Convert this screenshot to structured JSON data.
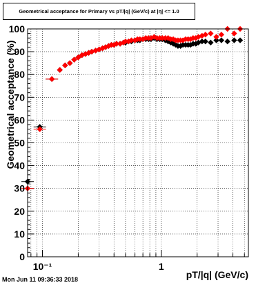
{
  "page_title": "Geometrical acceptance for Primary vs pT/|q| (GeV/c) at |η| <= 1.0",
  "footer_timestamp": "Mon Jun 11 09:36:33 2018",
  "chart_data": {
    "type": "scatter",
    "title": "Geometrical acceptance for Primary vs pT/|q| (GeV/c) at |η| <= 1.0",
    "xlabel": "pT/|q| (GeV/c)",
    "ylabel": "Geometrical acceptance (%)",
    "x_scale": "log",
    "xlim": [
      0.075,
      5.4
    ],
    "ylim": [
      0,
      100
    ],
    "grid": true,
    "legend": "none",
    "x_tick_labels": [
      "10⁻¹",
      "1"
    ],
    "y_tick_labels": [
      "0",
      "10",
      "20",
      "30",
      "40",
      "50",
      "60",
      "70",
      "80",
      "90",
      "100"
    ],
    "series": [
      {
        "marker": "diamond",
        "color": "#000000",
        "points": [
          [
            0.075,
            33
          ],
          [
            0.095,
            57
          ],
          [
            0.12,
            78
          ],
          [
            0.14,
            82
          ],
          [
            0.155,
            84
          ],
          [
            0.17,
            85
          ],
          [
            0.185,
            86.5
          ],
          [
            0.2,
            87.5
          ],
          [
            0.215,
            88.5
          ],
          [
            0.23,
            89
          ],
          [
            0.245,
            89.5
          ],
          [
            0.26,
            90
          ],
          [
            0.28,
            90.5
          ],
          [
            0.3,
            91
          ],
          [
            0.32,
            91.5
          ],
          [
            0.34,
            92
          ],
          [
            0.36,
            92.5
          ],
          [
            0.38,
            93
          ],
          [
            0.4,
            93
          ],
          [
            0.42,
            93.5
          ],
          [
            0.45,
            93.5
          ],
          [
            0.48,
            94
          ],
          [
            0.5,
            94
          ],
          [
            0.53,
            94.5
          ],
          [
            0.56,
            94.5
          ],
          [
            0.6,
            95
          ],
          [
            0.63,
            95
          ],
          [
            0.66,
            95
          ],
          [
            0.7,
            95.5
          ],
          [
            0.74,
            95.5
          ],
          [
            0.78,
            95.5
          ],
          [
            0.82,
            95.5
          ],
          [
            0.87,
            96
          ],
          [
            0.92,
            95.5
          ],
          [
            0.97,
            95.5
          ],
          [
            1.02,
            95.5
          ],
          [
            1.08,
            95
          ],
          [
            1.14,
            94.5
          ],
          [
            1.2,
            94
          ],
          [
            1.26,
            93.5
          ],
          [
            1.32,
            93
          ],
          [
            1.38,
            92.5
          ],
          [
            1.45,
            92.5
          ],
          [
            1.52,
            93
          ],
          [
            1.6,
            93
          ],
          [
            1.68,
            93
          ],
          [
            1.76,
            93
          ],
          [
            1.85,
            93.5
          ],
          [
            1.95,
            93.5
          ],
          [
            2.05,
            94
          ],
          [
            2.2,
            94.5
          ],
          [
            2.35,
            94.5
          ],
          [
            2.6,
            94
          ],
          [
            2.9,
            95
          ],
          [
            3.2,
            95
          ],
          [
            3.6,
            94.5
          ],
          [
            4.1,
            95
          ],
          [
            4.6,
            95
          ]
        ]
      },
      {
        "marker": "diamond",
        "color": "#ff0000",
        "points": [
          [
            0.075,
            30
          ],
          [
            0.095,
            56
          ],
          [
            0.12,
            78
          ],
          [
            0.14,
            82
          ],
          [
            0.155,
            84
          ],
          [
            0.17,
            85
          ],
          [
            0.185,
            86.5
          ],
          [
            0.2,
            87.5
          ],
          [
            0.215,
            88.5
          ],
          [
            0.23,
            89
          ],
          [
            0.245,
            89.5
          ],
          [
            0.26,
            90
          ],
          [
            0.28,
            90.5
          ],
          [
            0.3,
            91
          ],
          [
            0.32,
            91.5
          ],
          [
            0.34,
            92
          ],
          [
            0.36,
            92.5
          ],
          [
            0.38,
            93
          ],
          [
            0.4,
            93
          ],
          [
            0.42,
            93.5
          ],
          [
            0.45,
            93.5
          ],
          [
            0.48,
            94
          ],
          [
            0.5,
            94.5
          ],
          [
            0.53,
            94.5
          ],
          [
            0.56,
            95
          ],
          [
            0.6,
            95
          ],
          [
            0.63,
            95.5
          ],
          [
            0.66,
            95.5
          ],
          [
            0.7,
            95.5
          ],
          [
            0.74,
            96
          ],
          [
            0.78,
            96
          ],
          [
            0.82,
            96
          ],
          [
            0.87,
            96.5
          ],
          [
            0.92,
            96
          ],
          [
            0.97,
            96
          ],
          [
            1.02,
            96
          ],
          [
            1.08,
            96
          ],
          [
            1.14,
            96
          ],
          [
            1.2,
            95.5
          ],
          [
            1.26,
            95.5
          ],
          [
            1.32,
            95
          ],
          [
            1.38,
            95
          ],
          [
            1.45,
            95
          ],
          [
            1.52,
            95
          ],
          [
            1.6,
            95.5
          ],
          [
            1.68,
            95.5
          ],
          [
            1.76,
            95.5
          ],
          [
            1.85,
            96
          ],
          [
            1.95,
            96
          ],
          [
            2.05,
            96.5
          ],
          [
            2.2,
            97
          ],
          [
            2.35,
            97.5
          ],
          [
            2.6,
            98
          ],
          [
            2.9,
            96.5
          ],
          [
            3.2,
            97.5
          ],
          [
            3.6,
            100
          ],
          [
            4.1,
            98
          ],
          [
            4.6,
            100
          ]
        ]
      }
    ]
  }
}
